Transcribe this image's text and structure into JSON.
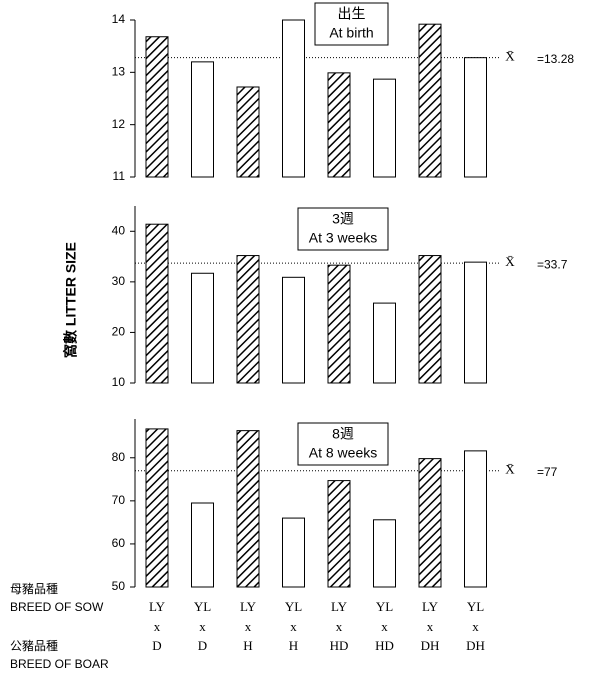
{
  "y_label": "窩數 LITTER SIZE",
  "row_labels": {
    "sow_zh": "母豬品種",
    "sow_en": "BREED OF SOW",
    "boar_zh": "公豬品種",
    "boar_en": "BREED OF BOAR"
  },
  "sows": [
    "LY",
    "YL",
    "LY",
    "YL",
    "LY",
    "YL",
    "LY",
    "YL"
  ],
  "cross": [
    "x",
    "x",
    "x",
    "x",
    "x",
    "x",
    "x",
    "x"
  ],
  "boars": [
    "D",
    "D",
    "H",
    "H",
    "HD",
    "HD",
    "DH",
    "DH"
  ],
  "chart_data": [
    {
      "type": "bar",
      "title": [
        "出生",
        "At birth"
      ],
      "values": [
        13.68,
        13.2,
        12.72,
        14.0,
        12.99,
        12.87,
        13.92,
        13.28
      ],
      "hatched": [
        true,
        false,
        true,
        false,
        true,
        false,
        true,
        false
      ],
      "ylim": [
        11,
        14
      ],
      "yticks": [
        11,
        12,
        13,
        14
      ],
      "mean_symbol": "X̄",
      "mean": {
        "value": 13.28,
        "label": "=13.28"
      }
    },
    {
      "type": "bar",
      "title": [
        "3週",
        "At 3 weeks"
      ],
      "values": [
        41.4,
        31.7,
        35.2,
        30.9,
        33.3,
        25.8,
        35.2,
        33.9
      ],
      "hatched": [
        true,
        false,
        true,
        false,
        true,
        false,
        true,
        false
      ],
      "ylim": [
        10,
        45
      ],
      "yticks": [
        10,
        20,
        30,
        40
      ],
      "mean_symbol": "X̄",
      "mean": {
        "value": 33.7,
        "label": "=33.7"
      }
    },
    {
      "type": "bar",
      "title": [
        "8週",
        "At 8 weeks"
      ],
      "values": [
        86.7,
        69.5,
        86.3,
        66.0,
        74.7,
        65.6,
        79.8,
        81.6
      ],
      "hatched": [
        true,
        false,
        true,
        false,
        true,
        false,
        true,
        false
      ],
      "ylim": [
        50,
        89
      ],
      "yticks": [
        50,
        60,
        70,
        80
      ],
      "mean_symbol": "X̄",
      "mean": {
        "value": 77,
        "label": "=77"
      }
    }
  ]
}
